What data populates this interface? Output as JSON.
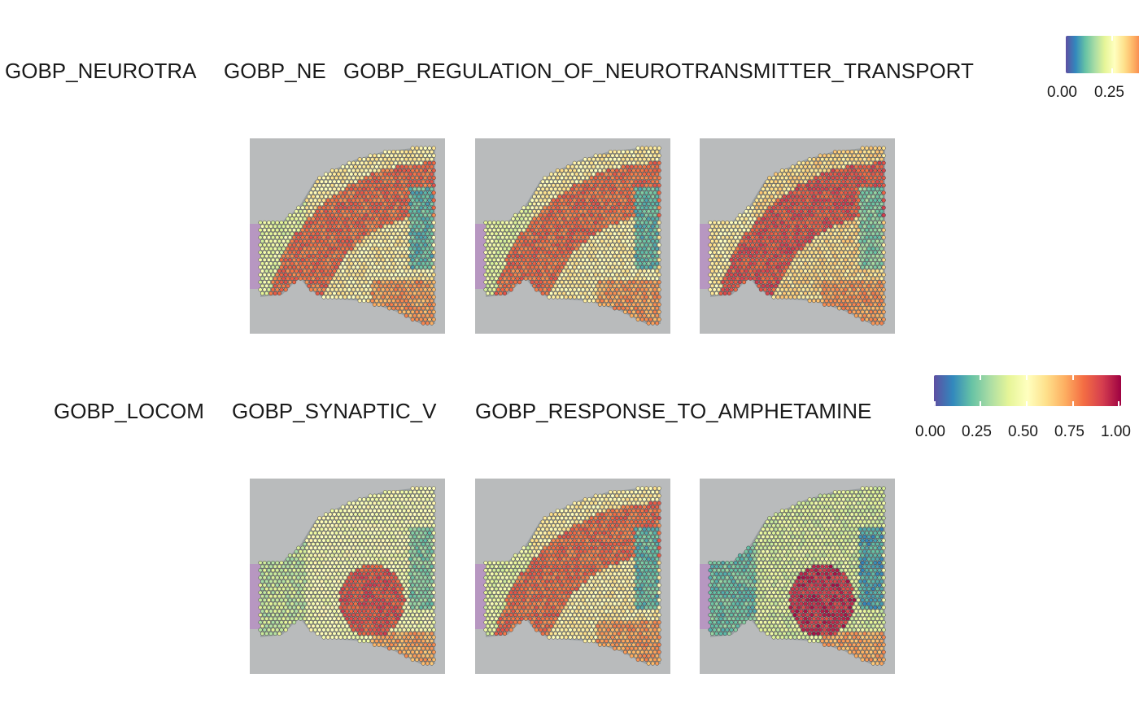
{
  "chart_data": [
    {
      "type": "heatmap",
      "title": "",
      "panels": [
        {
          "name": "GOBP_NEUROTRANSMITTER_TRANSPORT",
          "visible_label": "GOBP_NEUROTRA",
          "pattern": "cortex"
        },
        {
          "name": "GOBP_NEUROTRANSMITTER_SECRETION",
          "visible_label": "GOBP_NE",
          "pattern": "cortex"
        },
        {
          "name": "GOBP_REGULATION_OF_NEUROTRANSMITTER_TRANSPORT",
          "visible_label": "GOBP_REGULATION_OF_NEUROTRANSMITTER_TRANSPORT",
          "pattern": "cortex_strong"
        }
      ],
      "legend": {
        "ticks": [
          "0.00",
          "0.25"
        ],
        "scale": "Spectral (reversed)",
        "range": [
          0,
          1
        ]
      }
    },
    {
      "type": "heatmap",
      "title": "",
      "panels": [
        {
          "name": "GOBP_LOCOMOTORY_BEHAVIOR",
          "visible_label": "GOBP_LOCOM",
          "pattern": "striatum"
        },
        {
          "name": "GOBP_SYNAPTIC_VESICLE_CYCLE",
          "visible_label": "GOBP_SYNAPTIC_V",
          "pattern": "cortex"
        },
        {
          "name": "GOBP_RESPONSE_TO_AMPHETAMINE",
          "visible_label": "GOBP_RESPONSE_TO_AMPHETAMINE",
          "pattern": "striatum_strong"
        }
      ],
      "legend": {
        "ticks": [
          "0.00",
          "0.25",
          "0.50",
          "0.75",
          "1.00"
        ],
        "scale": "Spectral (reversed)",
        "range": [
          0,
          1
        ]
      }
    }
  ],
  "colors": {
    "background": "#ffffff",
    "tissue_bg": "#b9bbbc",
    "palette": [
      "#5e4fa2",
      "#3288bd",
      "#66c2a5",
      "#abdda4",
      "#e6f598",
      "#ffffbf",
      "#fee08b",
      "#fdae61",
      "#f46d43",
      "#d53e4f",
      "#9e0142"
    ]
  }
}
